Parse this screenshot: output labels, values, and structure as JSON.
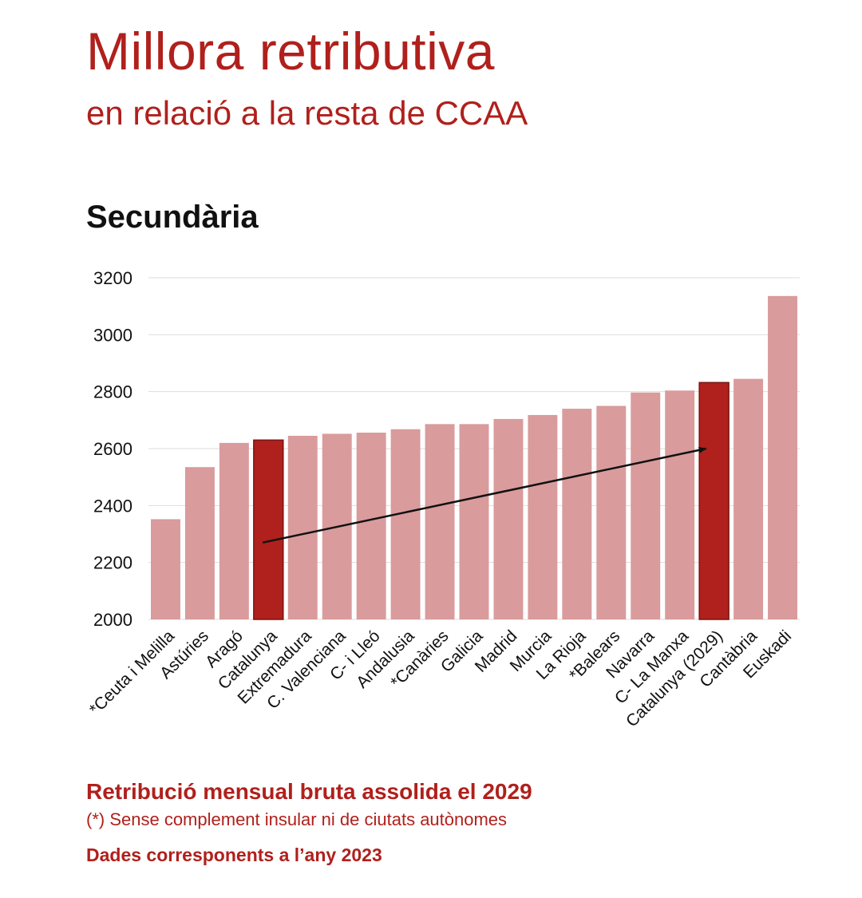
{
  "header": {
    "title": "Millora retributiva",
    "subtitle": "en relació a la resta de CCAA",
    "section": "Secundària"
  },
  "footer": {
    "note_main": "Retribució mensual bruta assolida el 2029",
    "note_asterisk": "(*) Sense complement insular ni de ciutats autònomes",
    "note_data": "Dades corresponents a l’any 2023"
  },
  "colors": {
    "bar": "#d99b9c",
    "highlight": "#b0201c",
    "grid": "#dddddd",
    "arrow": "#111111"
  },
  "chart_data": {
    "type": "bar",
    "title": "Secundària",
    "xlabel": "",
    "ylabel": "",
    "ylim": [
      2000,
      3200
    ],
    "yticks": [
      2000,
      2200,
      2400,
      2600,
      2800,
      3000,
      3200
    ],
    "grid": true,
    "categories": [
      "*Ceuta i Melilla",
      "Astúries",
      "Aragó",
      "Catalunya",
      "Extremadura",
      "C. Valenciana",
      "C- i Lleó",
      "Andalusia",
      "*Canàries",
      "Galicia",
      "Madrid",
      "Murcia",
      "La Rioja",
      "*Balears",
      "Navarra",
      "C- La Manxa",
      "Catalunya (2029)",
      "Cantàbria",
      "Euskadi"
    ],
    "values": [
      2352,
      2535,
      2620,
      2630,
      2645,
      2652,
      2656,
      2668,
      2686,
      2686,
      2704,
      2718,
      2740,
      2750,
      2797,
      2804,
      2832,
      2845,
      3136
    ],
    "highlighted": [
      "Catalunya",
      "Catalunya (2029)"
    ],
    "annotation": {
      "type": "arrow",
      "from": {
        "category": "Catalunya",
        "value": 2270
      },
      "to": {
        "category": "Catalunya (2029)",
        "value": 2600
      }
    }
  }
}
